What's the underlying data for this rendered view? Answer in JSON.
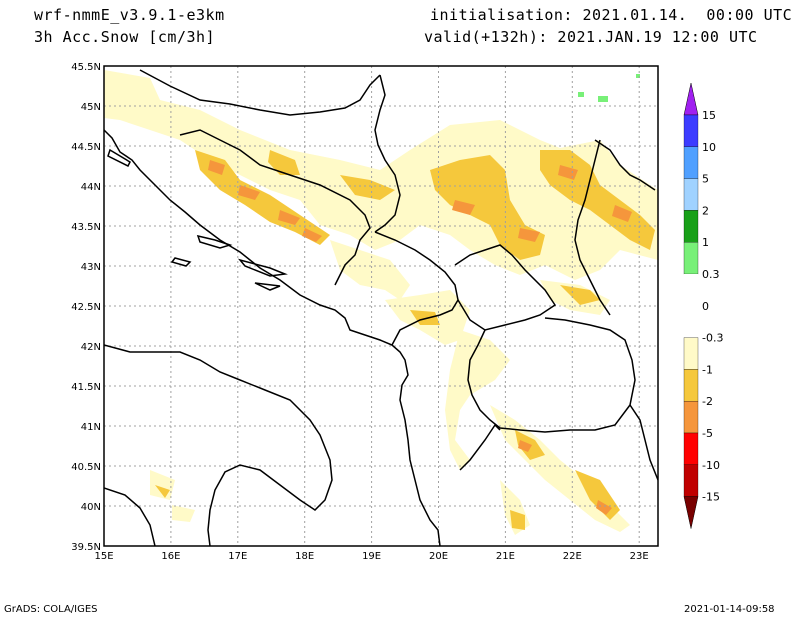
{
  "header": {
    "model": "wrf-nmmE_v3.9.1-e3km",
    "variable": "3h Acc.Snow [cm/3h]",
    "init": "initialisation: 2021.01.14.  00:00 UTC",
    "valid": "valid(+132h): 2021.JAN.19 12:00 UTC"
  },
  "map": {
    "lat_labels": [
      "45.5N",
      "45N",
      "44.5N",
      "44N",
      "43.5N",
      "43N",
      "42.5N",
      "42N",
      "41.5N",
      "41N",
      "40.5N",
      "40N",
      "39.5N"
    ],
    "lon_labels": [
      "15E",
      "16E",
      "17E",
      "18E",
      "19E",
      "20E",
      "21E",
      "22E",
      "23E"
    ]
  },
  "colorbar": {
    "labels": [
      "15",
      "10",
      "5",
      "2",
      "1",
      "0.3",
      "0",
      "-0.3",
      "-1",
      "-2",
      "-5",
      "-10",
      "-15"
    ],
    "colors": {
      "violet": "#a020f0",
      "blue_dark": "#3c3cff",
      "blue_mid": "#50a0ff",
      "blue_light": "#a0d2ff",
      "green_dark": "#18a018",
      "green_light": "#78f078",
      "white": "#ffffff",
      "cream": "#fffac8",
      "gold": "#f5c83c",
      "orange": "#f5963c",
      "red": "#ff0000",
      "red_dark": "#c00000",
      "maroon": "#780000"
    }
  },
  "footer": {
    "left": "GrADS: COLA/IGES",
    "right": "2021-01-14-09:58"
  }
}
